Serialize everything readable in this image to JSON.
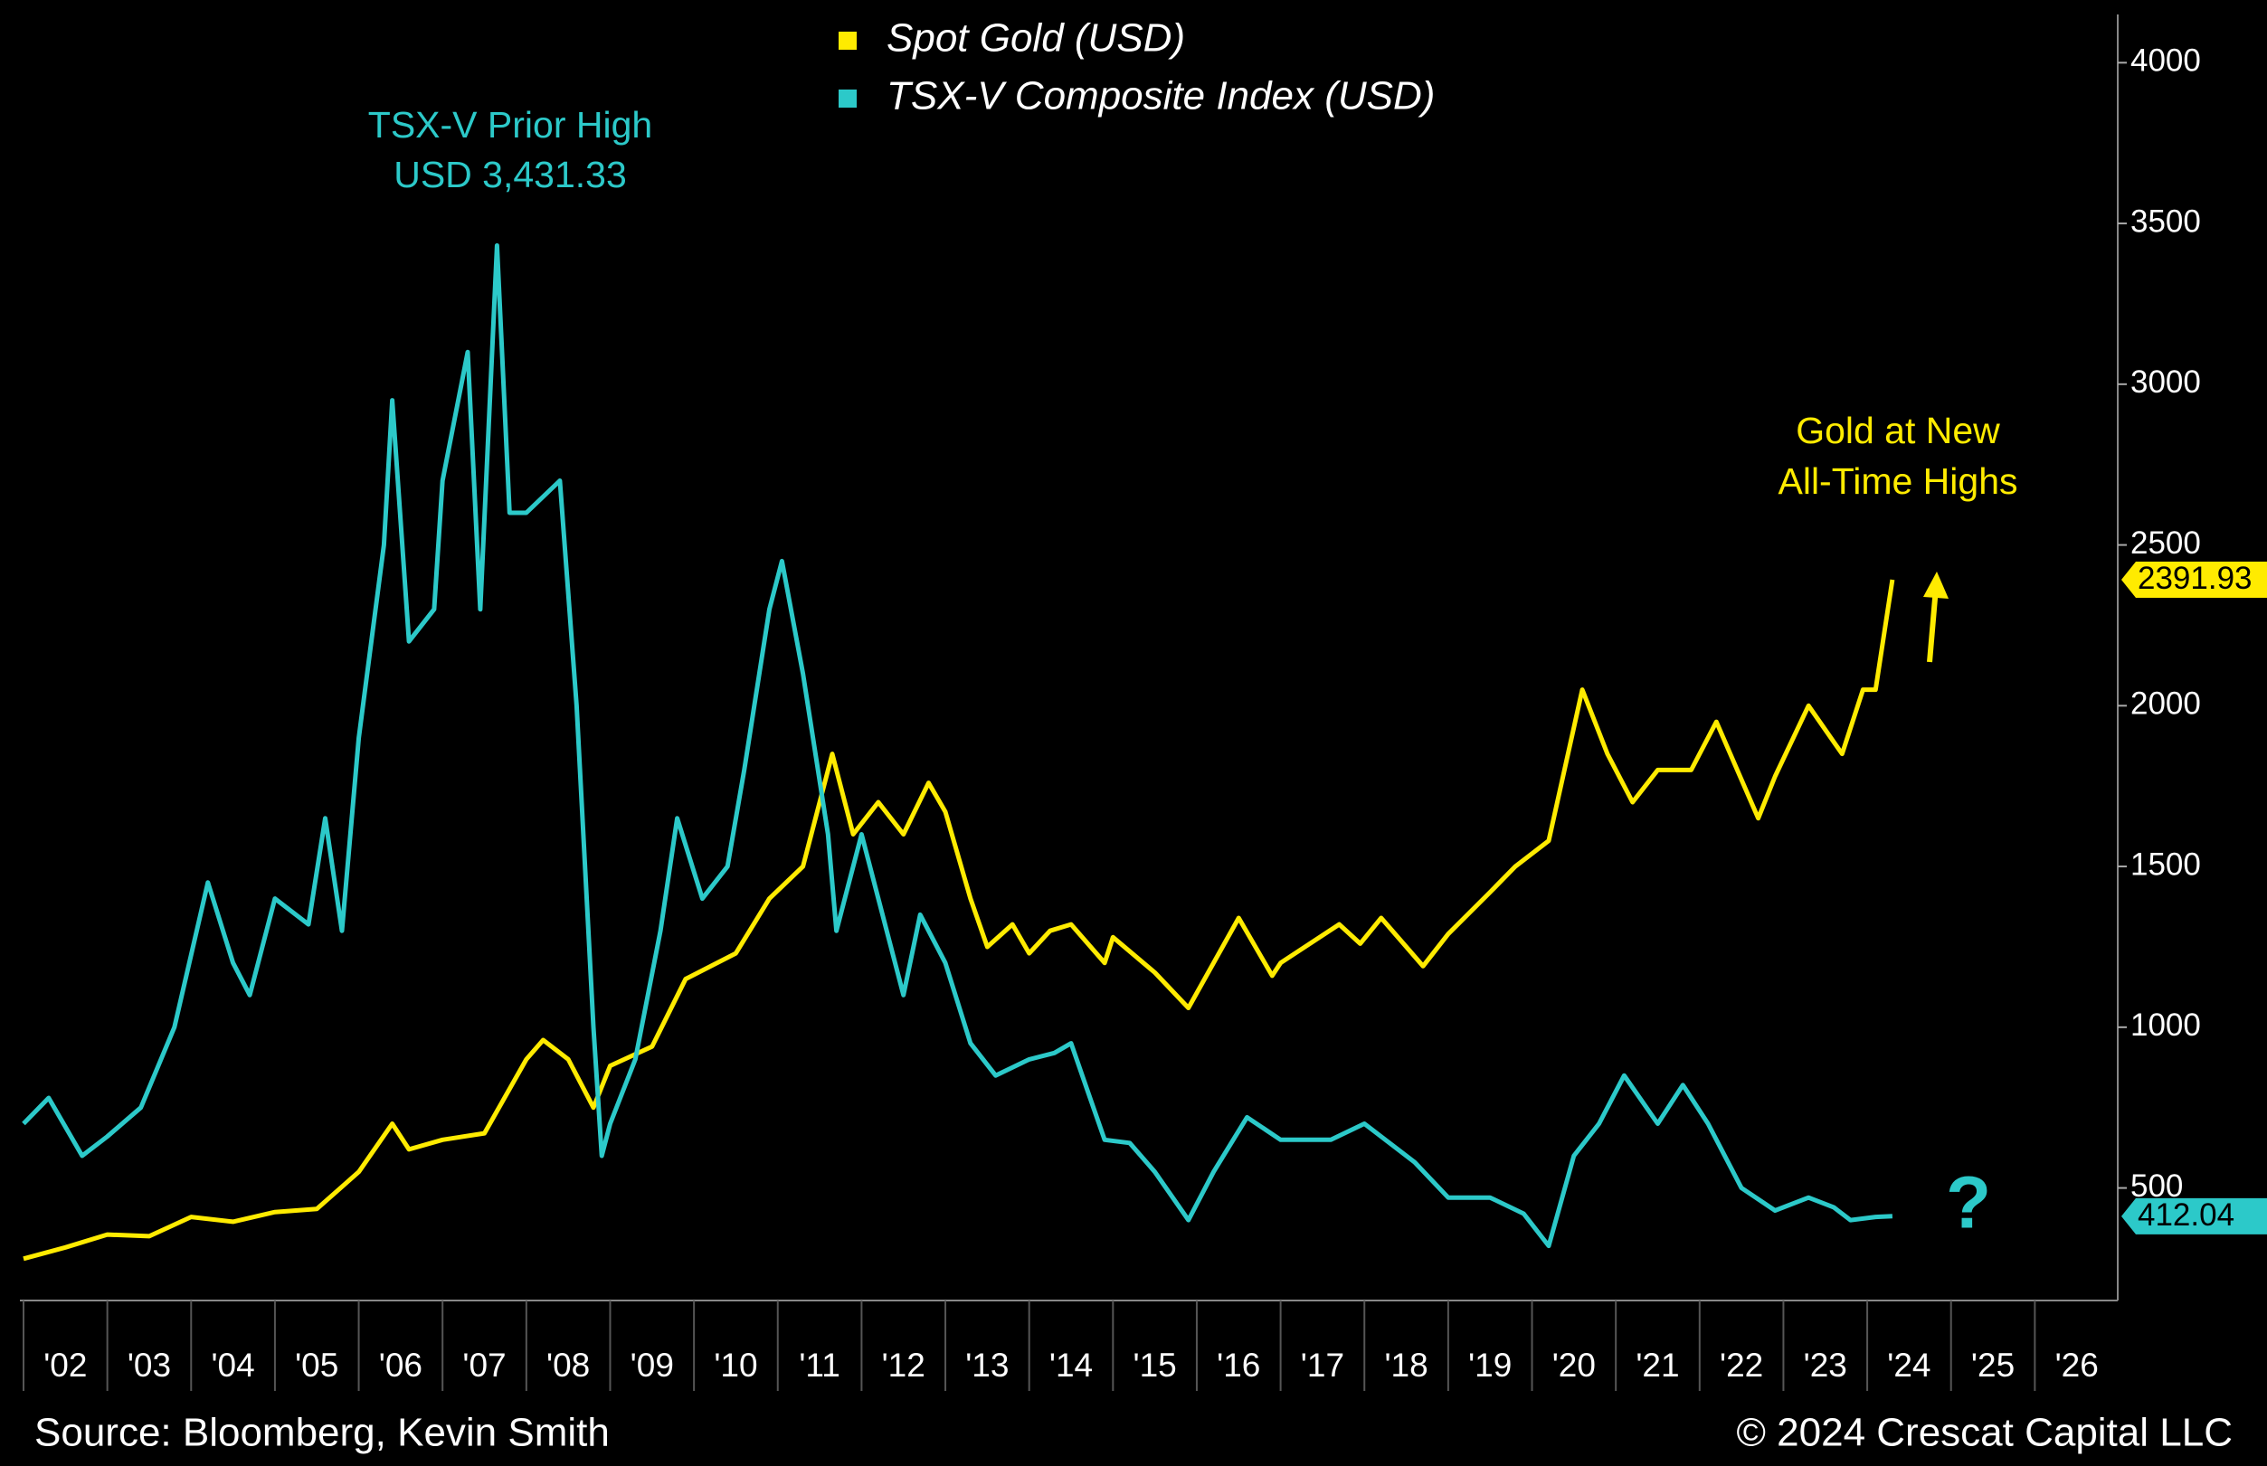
{
  "chart_data": {
    "type": "line",
    "legend": [
      "Spot Gold (USD)",
      "TSX-V Composite Index (USD)"
    ],
    "annotations": {
      "tsx_high": [
        "TSX-V Prior High",
        "USD 3,431.33"
      ],
      "gold_high": [
        "Gold at New",
        "All-Time Highs"
      ],
      "question": "?"
    },
    "source": "Source: Bloomberg, Kevin Smith",
    "copyright": "© 2024 Crescat Capital LLC",
    "xlim": [
      2002,
      2027
    ],
    "xticks": [
      {
        "value": 2002,
        "label": "'02"
      },
      {
        "value": 2003,
        "label": "'03"
      },
      {
        "value": 2004,
        "label": "'04"
      },
      {
        "value": 2005,
        "label": "'05"
      },
      {
        "value": 2006,
        "label": "'06"
      },
      {
        "value": 2007,
        "label": "'07"
      },
      {
        "value": 2008,
        "label": "'08"
      },
      {
        "value": 2009,
        "label": "'09"
      },
      {
        "value": 2010,
        "label": "'10"
      },
      {
        "value": 2011,
        "label": "'11"
      },
      {
        "value": 2012,
        "label": "'12"
      },
      {
        "value": 2013,
        "label": "'13"
      },
      {
        "value": 2014,
        "label": "'14"
      },
      {
        "value": 2015,
        "label": "'15"
      },
      {
        "value": 2016,
        "label": "'16"
      },
      {
        "value": 2017,
        "label": "'17"
      },
      {
        "value": 2018,
        "label": "'18"
      },
      {
        "value": 2019,
        "label": "'19"
      },
      {
        "value": 2020,
        "label": "'20"
      },
      {
        "value": 2021,
        "label": "'21"
      },
      {
        "value": 2022,
        "label": "'22"
      },
      {
        "value": 2023,
        "label": "'23"
      },
      {
        "value": 2024,
        "label": "'24"
      },
      {
        "value": 2025,
        "label": "'25"
      },
      {
        "value": 2026,
        "label": "'26"
      }
    ],
    "ylim": [
      150,
      4150
    ],
    "yticks": [
      500,
      1000,
      1500,
      2000,
      2500,
      3000,
      3500,
      4000
    ],
    "grid": false,
    "series": [
      {
        "name": "Spot Gold (USD)",
        "color": "#ffeb00",
        "x": [
          2002.0,
          2002.5,
          2003.0,
          2003.5,
          2004.0,
          2004.5,
          2005.0,
          2005.5,
          2006.0,
          2006.4,
          2006.6,
          2007.0,
          2007.5,
          2008.0,
          2008.2,
          2008.5,
          2008.8,
          2009.0,
          2009.5,
          2009.9,
          2010.5,
          2010.9,
          2011.3,
          2011.65,
          2011.9,
          2012.2,
          2012.5,
          2012.8,
          2013.0,
          2013.3,
          2013.5,
          2013.8,
          2014.0,
          2014.25,
          2014.5,
          2014.9,
          2015.0,
          2015.5,
          2015.9,
          2016.5,
          2016.9,
          2017.0,
          2017.7,
          2017.95,
          2018.2,
          2018.7,
          2019.0,
          2019.5,
          2019.8,
          2020.2,
          2020.6,
          2020.9,
          2021.2,
          2021.5,
          2021.9,
          2022.2,
          2022.7,
          2022.9,
          2023.3,
          2023.7,
          2023.95,
          2024.1,
          2024.3
        ],
        "values": [
          280,
          315,
          355,
          350,
          410,
          395,
          425,
          435,
          550,
          700,
          620,
          650,
          670,
          900,
          960,
          900,
          750,
          880,
          940,
          1150,
          1230,
          1400,
          1500,
          1850,
          1600,
          1700,
          1600,
          1760,
          1670,
          1400,
          1250,
          1320,
          1230,
          1300,
          1320,
          1200,
          1280,
          1170,
          1060,
          1340,
          1160,
          1200,
          1320,
          1260,
          1340,
          1190,
          1290,
          1420,
          1500,
          1580,
          2050,
          1850,
          1700,
          1800,
          1800,
          1950,
          1650,
          1780,
          2000,
          1850,
          2050,
          2050,
          2391.93
        ]
      },
      {
        "name": "TSX-V Composite Index (USD)",
        "color": "#2cc9c9",
        "x": [
          2002.0,
          2002.3,
          2002.7,
          2003.0,
          2003.4,
          2003.8,
          2004.2,
          2004.5,
          2004.7,
          2005.0,
          2005.4,
          2005.6,
          2005.8,
          2006.0,
          2006.3,
          2006.4,
          2006.6,
          2006.9,
          2007.0,
          2007.3,
          2007.45,
          2007.65,
          2007.8,
          2008.0,
          2008.4,
          2008.6,
          2008.8,
          2008.9,
          2009.0,
          2009.3,
          2009.6,
          2009.8,
          2010.1,
          2010.4,
          2010.6,
          2010.9,
          2011.05,
          2011.3,
          2011.6,
          2011.7,
          2012.0,
          2012.3,
          2012.5,
          2012.7,
          2013.0,
          2013.3,
          2013.6,
          2014.0,
          2014.3,
          2014.5,
          2014.7,
          2014.9,
          2015.2,
          2015.5,
          2015.9,
          2016.2,
          2016.6,
          2017.0,
          2017.6,
          2018.0,
          2018.6,
          2019.0,
          2019.5,
          2019.9,
          2020.2,
          2020.5,
          2020.8,
          2021.1,
          2021.5,
          2021.8,
          2022.1,
          2022.5,
          2022.9,
          2023.3,
          2023.6,
          2023.8,
          2024.1,
          2024.3
        ],
        "values": [
          700,
          780,
          600,
          660,
          750,
          1000,
          1450,
          1200,
          1100,
          1400,
          1320,
          1650,
          1300,
          1900,
          2500,
          2950,
          2200,
          2300,
          2700,
          3100,
          2300,
          3431.33,
          2600,
          2600,
          2700,
          2000,
          1000,
          600,
          700,
          900,
          1300,
          1650,
          1400,
          1500,
          1800,
          2300,
          2450,
          2100,
          1600,
          1300,
          1600,
          1300,
          1100,
          1350,
          1200,
          950,
          850,
          900,
          920,
          950,
          800,
          650,
          640,
          550,
          400,
          550,
          720,
          650,
          650,
          700,
          580,
          470,
          470,
          420,
          320,
          600,
          700,
          850,
          700,
          820,
          700,
          500,
          430,
          470,
          440,
          400,
          410,
          412.04
        ]
      }
    ]
  }
}
